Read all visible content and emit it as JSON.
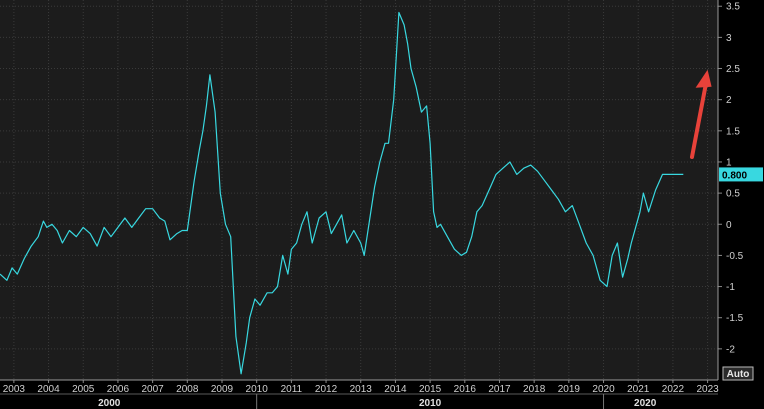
{
  "chart_data": {
    "type": "line",
    "title": "",
    "xlabel": "",
    "ylabel": "",
    "grid": true,
    "line_color": "#38d8e0",
    "background_color": "#1c1c1c",
    "annotation_arrow_color": "#e8423a",
    "x_ticks": [
      "2003",
      "2004",
      "2005",
      "2006",
      "2007",
      "2008",
      "2009",
      "2010",
      "2011",
      "2012",
      "2013",
      "2014",
      "2015",
      "2016",
      "2017",
      "2018",
      "2019",
      "2020",
      "2021",
      "2022",
      "2023"
    ],
    "y_ticks": [
      "3.5",
      "3",
      "2.5",
      "2",
      "1.5",
      "1",
      "0.5",
      "0",
      "-0.5",
      "-1",
      "-1.5",
      "-2"
    ],
    "decade_labels": [
      "2000",
      "2010",
      "2020"
    ],
    "xlim": [
      2002.6,
      2023.3
    ],
    "ylim": [
      -2.5,
      3.6
    ],
    "last_value_label": "0.800",
    "auto_label": "Auto",
    "series": [
      {
        "x": [
          2002.6,
          2002.8,
          2002.95,
          2003.1,
          2003.3,
          2003.5,
          2003.7,
          2003.85,
          2003.95,
          2004.1,
          2004.25,
          2004.4,
          2004.6,
          2004.8,
          2005.0,
          2005.2,
          2005.4,
          2005.6,
          2005.8,
          2006.0,
          2006.2,
          2006.4,
          2006.6,
          2006.8,
          2007.0,
          2007.2,
          2007.35,
          2007.5,
          2007.7,
          2007.85,
          2008.0,
          2008.2,
          2008.35,
          2008.45,
          2008.55,
          2008.65,
          2008.8,
          2008.95,
          2009.1,
          2009.25,
          2009.4,
          2009.55,
          2009.7,
          2009.8,
          2009.95,
          2010.1,
          2010.3,
          2010.45,
          2010.6,
          2010.75,
          2010.9,
          2011.0,
          2011.15,
          2011.3,
          2011.45,
          2011.6,
          2011.8,
          2012.0,
          2012.15,
          2012.3,
          2012.45,
          2012.6,
          2012.8,
          2013.0,
          2013.1,
          2013.25,
          2013.4,
          2013.55,
          2013.7,
          2013.8,
          2013.95,
          2014.1,
          2014.25,
          2014.35,
          2014.45,
          2014.6,
          2014.75,
          2014.9,
          2015.0,
          2015.1,
          2015.2,
          2015.3,
          2015.5,
          2015.7,
          2015.9,
          2016.05,
          2016.2,
          2016.35,
          2016.5,
          2016.7,
          2016.9,
          2017.1,
          2017.3,
          2017.5,
          2017.7,
          2017.9,
          2018.1,
          2018.3,
          2018.5,
          2018.7,
          2018.9,
          2019.1,
          2019.3,
          2019.5,
          2019.7,
          2019.9,
          2020.1,
          2020.25,
          2020.4,
          2020.55,
          2020.7,
          2020.8,
          2020.95,
          2021.05,
          2021.15,
          2021.3,
          2021.5,
          2021.7,
          2021.85,
          2022.0,
          2022.15,
          2022.3
        ],
        "values": [
          -0.8,
          -0.9,
          -0.7,
          -0.8,
          -0.55,
          -0.35,
          -0.2,
          0.05,
          -0.05,
          0.0,
          -0.1,
          -0.3,
          -0.1,
          -0.2,
          -0.05,
          -0.15,
          -0.35,
          -0.05,
          -0.2,
          -0.05,
          0.1,
          -0.05,
          0.1,
          0.25,
          0.25,
          0.1,
          0.05,
          -0.25,
          -0.15,
          -0.1,
          -0.1,
          0.7,
          1.2,
          1.5,
          1.9,
          2.4,
          1.8,
          0.5,
          0.0,
          -0.2,
          -1.8,
          -2.4,
          -1.9,
          -1.5,
          -1.2,
          -1.3,
          -1.1,
          -1.1,
          -1.0,
          -0.5,
          -0.8,
          -0.4,
          -0.3,
          0.0,
          0.2,
          -0.3,
          0.1,
          0.2,
          -0.15,
          0.0,
          0.15,
          -0.3,
          -0.1,
          -0.3,
          -0.5,
          0.05,
          0.6,
          1.0,
          1.3,
          1.3,
          2.0,
          3.4,
          3.2,
          2.9,
          2.5,
          2.2,
          1.8,
          1.9,
          1.3,
          0.2,
          -0.05,
          0.0,
          -0.2,
          -0.4,
          -0.5,
          -0.45,
          -0.2,
          0.2,
          0.3,
          0.55,
          0.8,
          0.9,
          1.0,
          0.8,
          0.9,
          0.95,
          0.85,
          0.7,
          0.55,
          0.4,
          0.2,
          0.3,
          0.0,
          -0.3,
          -0.5,
          -0.9,
          -1.0,
          -0.5,
          -0.3,
          -0.85,
          -0.55,
          -0.3,
          0.0,
          0.2,
          0.5,
          0.2,
          0.55,
          0.8,
          0.8,
          0.8,
          0.8,
          0.8
        ]
      }
    ]
  }
}
